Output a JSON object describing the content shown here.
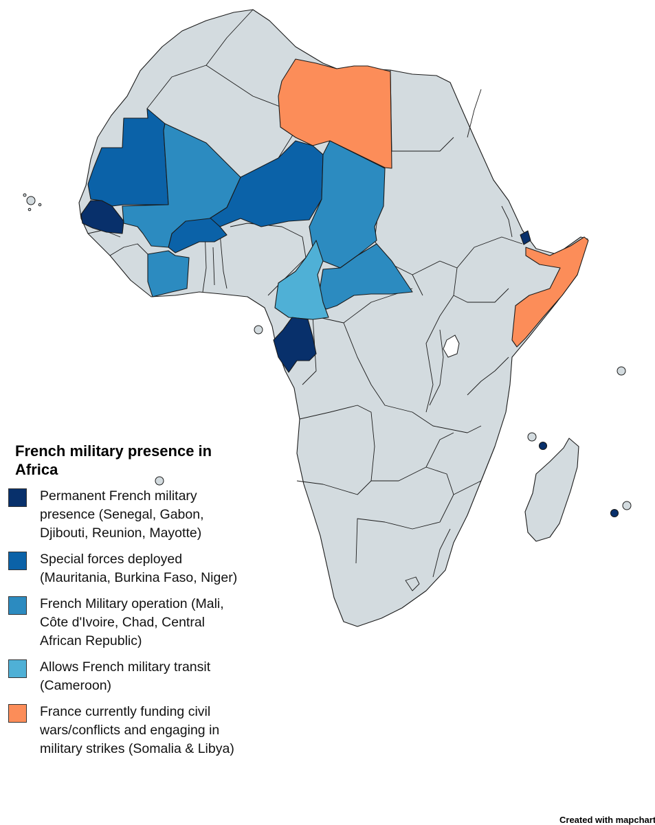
{
  "legend": {
    "title": "French military presence in Africa",
    "items": [
      {
        "id": "permanent",
        "color": "#08306b",
        "label": "Permanent French military presence (Senegal, Gabon, Djibouti, Reunion, Mayotte)"
      },
      {
        "id": "special",
        "color": "#0b62a8",
        "label": "Special forces deployed (Mauritania, Burkina Faso, Niger)"
      },
      {
        "id": "operation",
        "color": "#2c8bc0",
        "label": "French Military operation (Mali, Côte d'Ivoire, Chad, Central African Republic)"
      },
      {
        "id": "transit",
        "color": "#4fb0d6",
        "label": "Allows French military transit (Cameroon)"
      },
      {
        "id": "funding",
        "color": "#fc8d59",
        "label": "France currently funding civil wars/conflicts and engaging in military strikes (Somalia & Libya)"
      }
    ]
  },
  "base_color": "#d3dbdf",
  "credit": "Created with mapchart.net"
}
